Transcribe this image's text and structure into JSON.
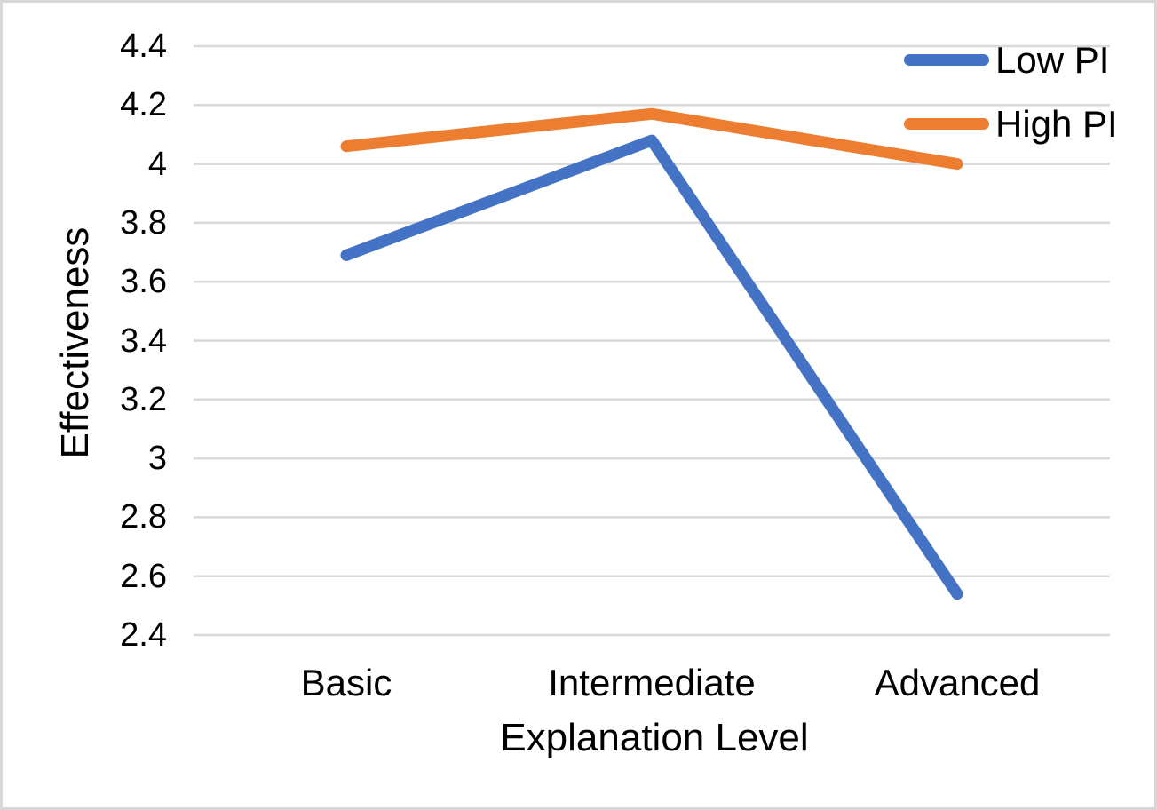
{
  "chart_data": {
    "type": "line",
    "title": "",
    "xlabel": "Explanation Level",
    "ylabel": "Effectiveness",
    "categories": [
      "Basic",
      "Intermediate",
      "Advanced"
    ],
    "series": [
      {
        "name": "Low PI",
        "color": "#4472C4",
        "values": [
          3.69,
          4.08,
          2.54
        ]
      },
      {
        "name": "High PI",
        "color": "#ED7D31",
        "values": [
          4.06,
          4.17,
          4.0
        ]
      }
    ],
    "ylim": [
      2.4,
      4.4
    ],
    "ytick_step": 0.2,
    "grid": "horizontal",
    "gridline_color": "#D9D9D9",
    "background": "#FFFFFF",
    "text_color": "#000000",
    "legend_position": "top-right-inside"
  }
}
